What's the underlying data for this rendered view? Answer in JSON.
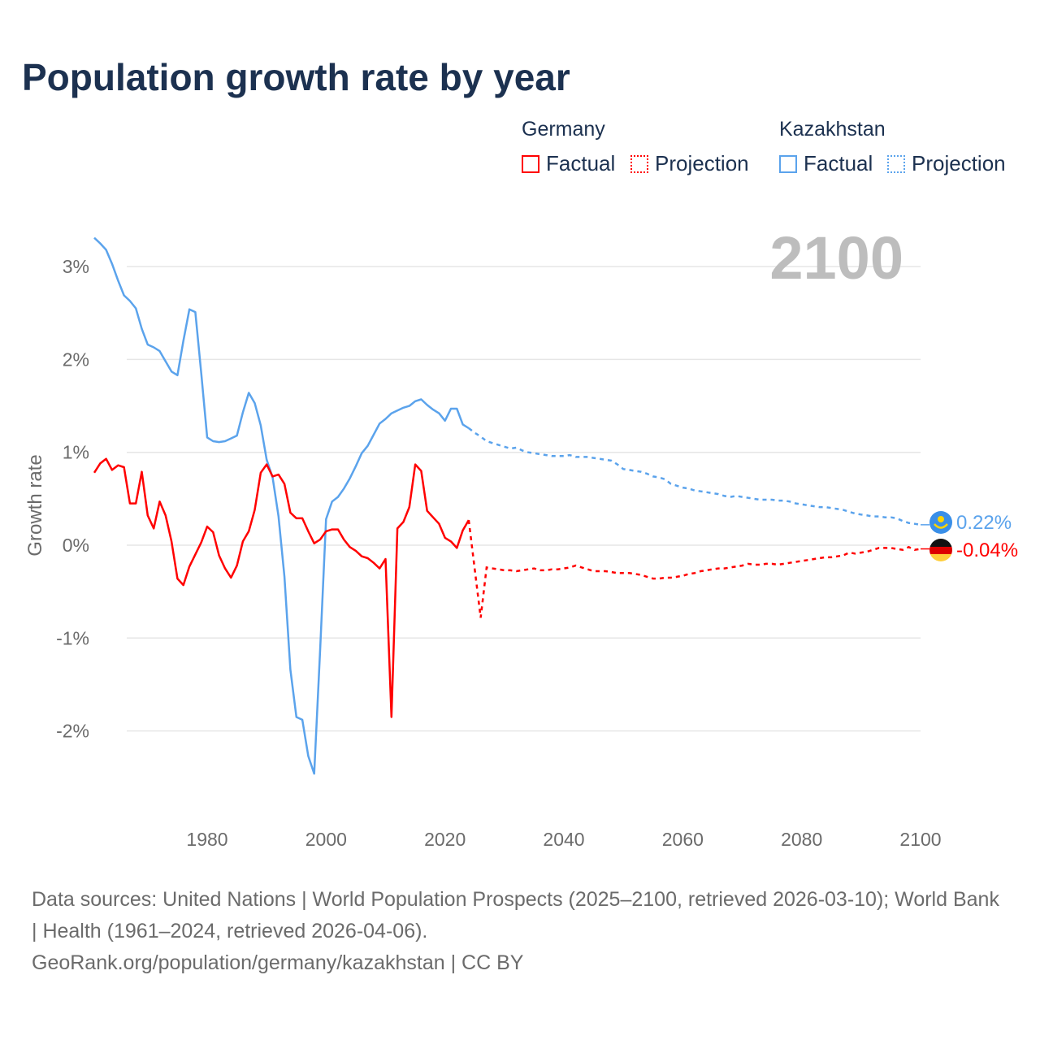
{
  "title": "Population growth rate by year",
  "legend": {
    "groups": [
      {
        "name": "Germany",
        "factual": "Factual",
        "projection": "Projection",
        "color": "#ff0000"
      },
      {
        "name": "Kazakhstan",
        "factual": "Factual",
        "projection": "Projection",
        "color": "#5ba3ec"
      }
    ]
  },
  "year_label": "2100",
  "end_labels": {
    "kazakhstan": "0.22%",
    "germany": "-0.04%"
  },
  "footer": {
    "sources": "Data sources: United Nations | World Population Prospects (2025–2100, retrieved 2026-03-10); World Bank | Health (1961–2024, retrieved 2026-04-06).",
    "credit": "GeoRank.org/population/germany/kazakhstan | CC BY"
  },
  "chart_data": {
    "type": "line",
    "title": "Population growth rate by year",
    "xlabel": "",
    "ylabel": "Growth rate",
    "xlim": [
      1961,
      2100
    ],
    "ylim": [
      -2.6,
      3.4
    ],
    "xticks": [
      1980,
      2000,
      2020,
      2040,
      2060,
      2080,
      2100
    ],
    "xtick_labels": [
      "1980",
      "2000",
      "2020",
      "2040",
      "2060",
      "2080",
      "2100"
    ],
    "yticks": [
      3,
      2,
      1,
      0,
      -1,
      -2
    ],
    "ytick_labels": [
      "3%",
      "2%",
      "1%",
      "0%",
      "-1%",
      "-2%"
    ],
    "grid": true,
    "legend_position": "top-right",
    "series": [
      {
        "name": "Kazakhstan",
        "color": "#5ba3ec",
        "factual_start": 1961,
        "factual": [
          3.31,
          3.25,
          3.18,
          3.03,
          2.85,
          2.69,
          2.63,
          2.55,
          2.33,
          2.16,
          2.13,
          2.09,
          1.98,
          1.87,
          1.83,
          2.2,
          2.54,
          2.51,
          1.85,
          1.16,
          1.12,
          1.11,
          1.12,
          1.15,
          1.18,
          1.43,
          1.64,
          1.53,
          1.29,
          0.92,
          0.73,
          0.31,
          -0.34,
          -1.34,
          -1.85,
          -1.88,
          -2.27,
          -2.46,
          -1.13,
          0.28,
          0.47,
          0.52,
          0.61,
          0.72,
          0.85,
          0.99,
          1.07,
          1.19,
          1.31,
          1.36,
          1.42,
          1.45,
          1.48,
          1.5,
          1.55,
          1.57,
          1.51,
          1.46,
          1.42,
          1.34,
          1.47,
          1.47,
          1.3,
          1.26
        ],
        "projection_start": 2025,
        "projection": [
          1.21,
          1.17,
          1.12,
          1.1,
          1.08,
          1.06,
          1.04,
          1.05,
          1.02,
          1.0,
          0.99,
          0.98,
          0.97,
          0.96,
          0.96,
          0.96,
          0.97,
          0.95,
          0.95,
          0.95,
          0.94,
          0.93,
          0.92,
          0.91,
          0.87,
          0.82,
          0.81,
          0.8,
          0.79,
          0.77,
          0.74,
          0.73,
          0.71,
          0.66,
          0.64,
          0.62,
          0.61,
          0.59,
          0.58,
          0.57,
          0.56,
          0.55,
          0.53,
          0.52,
          0.53,
          0.52,
          0.51,
          0.5,
          0.49,
          0.49,
          0.49,
          0.48,
          0.48,
          0.47,
          0.45,
          0.44,
          0.43,
          0.42,
          0.41,
          0.41,
          0.4,
          0.39,
          0.38,
          0.36,
          0.34,
          0.33,
          0.32,
          0.31,
          0.31,
          0.3,
          0.3,
          0.29,
          0.26,
          0.24,
          0.23,
          0.22
        ]
      },
      {
        "name": "Germany",
        "color": "#ff0000",
        "factual_start": 1961,
        "factual": [
          0.78,
          0.88,
          0.93,
          0.81,
          0.86,
          0.84,
          0.45,
          0.45,
          0.79,
          0.32,
          0.18,
          0.47,
          0.32,
          0.04,
          -0.36,
          -0.43,
          -0.23,
          -0.1,
          0.03,
          0.2,
          0.14,
          -0.11,
          -0.25,
          -0.35,
          -0.22,
          0.04,
          0.15,
          0.38,
          0.78,
          0.87,
          0.74,
          0.76,
          0.66,
          0.35,
          0.29,
          0.29,
          0.15,
          0.02,
          0.06,
          0.15,
          0.17,
          0.17,
          0.06,
          -0.02,
          -0.06,
          -0.12,
          -0.14,
          -0.19,
          -0.25,
          -0.15,
          -1.85,
          0.18,
          0.25,
          0.41,
          0.87,
          0.8,
          0.37,
          0.3,
          0.23,
          0.08,
          0.04,
          -0.03,
          0.16,
          0.27
        ],
        "projection_start": 2025,
        "projection": [
          -0.26,
          -0.78,
          -0.24,
          -0.25,
          -0.26,
          -0.27,
          -0.27,
          -0.28,
          -0.27,
          -0.26,
          -0.25,
          -0.27,
          -0.27,
          -0.26,
          -0.26,
          -0.25,
          -0.24,
          -0.22,
          -0.24,
          -0.26,
          -0.28,
          -0.28,
          -0.28,
          -0.29,
          -0.3,
          -0.3,
          -0.3,
          -0.31,
          -0.32,
          -0.34,
          -0.36,
          -0.36,
          -0.35,
          -0.35,
          -0.34,
          -0.33,
          -0.31,
          -0.3,
          -0.28,
          -0.27,
          -0.26,
          -0.25,
          -0.25,
          -0.24,
          -0.23,
          -0.22,
          -0.2,
          -0.21,
          -0.21,
          -0.2,
          -0.2,
          -0.21,
          -0.2,
          -0.19,
          -0.18,
          -0.17,
          -0.16,
          -0.15,
          -0.14,
          -0.13,
          -0.13,
          -0.12,
          -0.11,
          -0.08,
          -0.09,
          -0.08,
          -0.07,
          -0.05,
          -0.03,
          -0.03,
          -0.03,
          -0.04,
          -0.05,
          -0.02,
          -0.05,
          -0.04
        ]
      }
    ]
  }
}
